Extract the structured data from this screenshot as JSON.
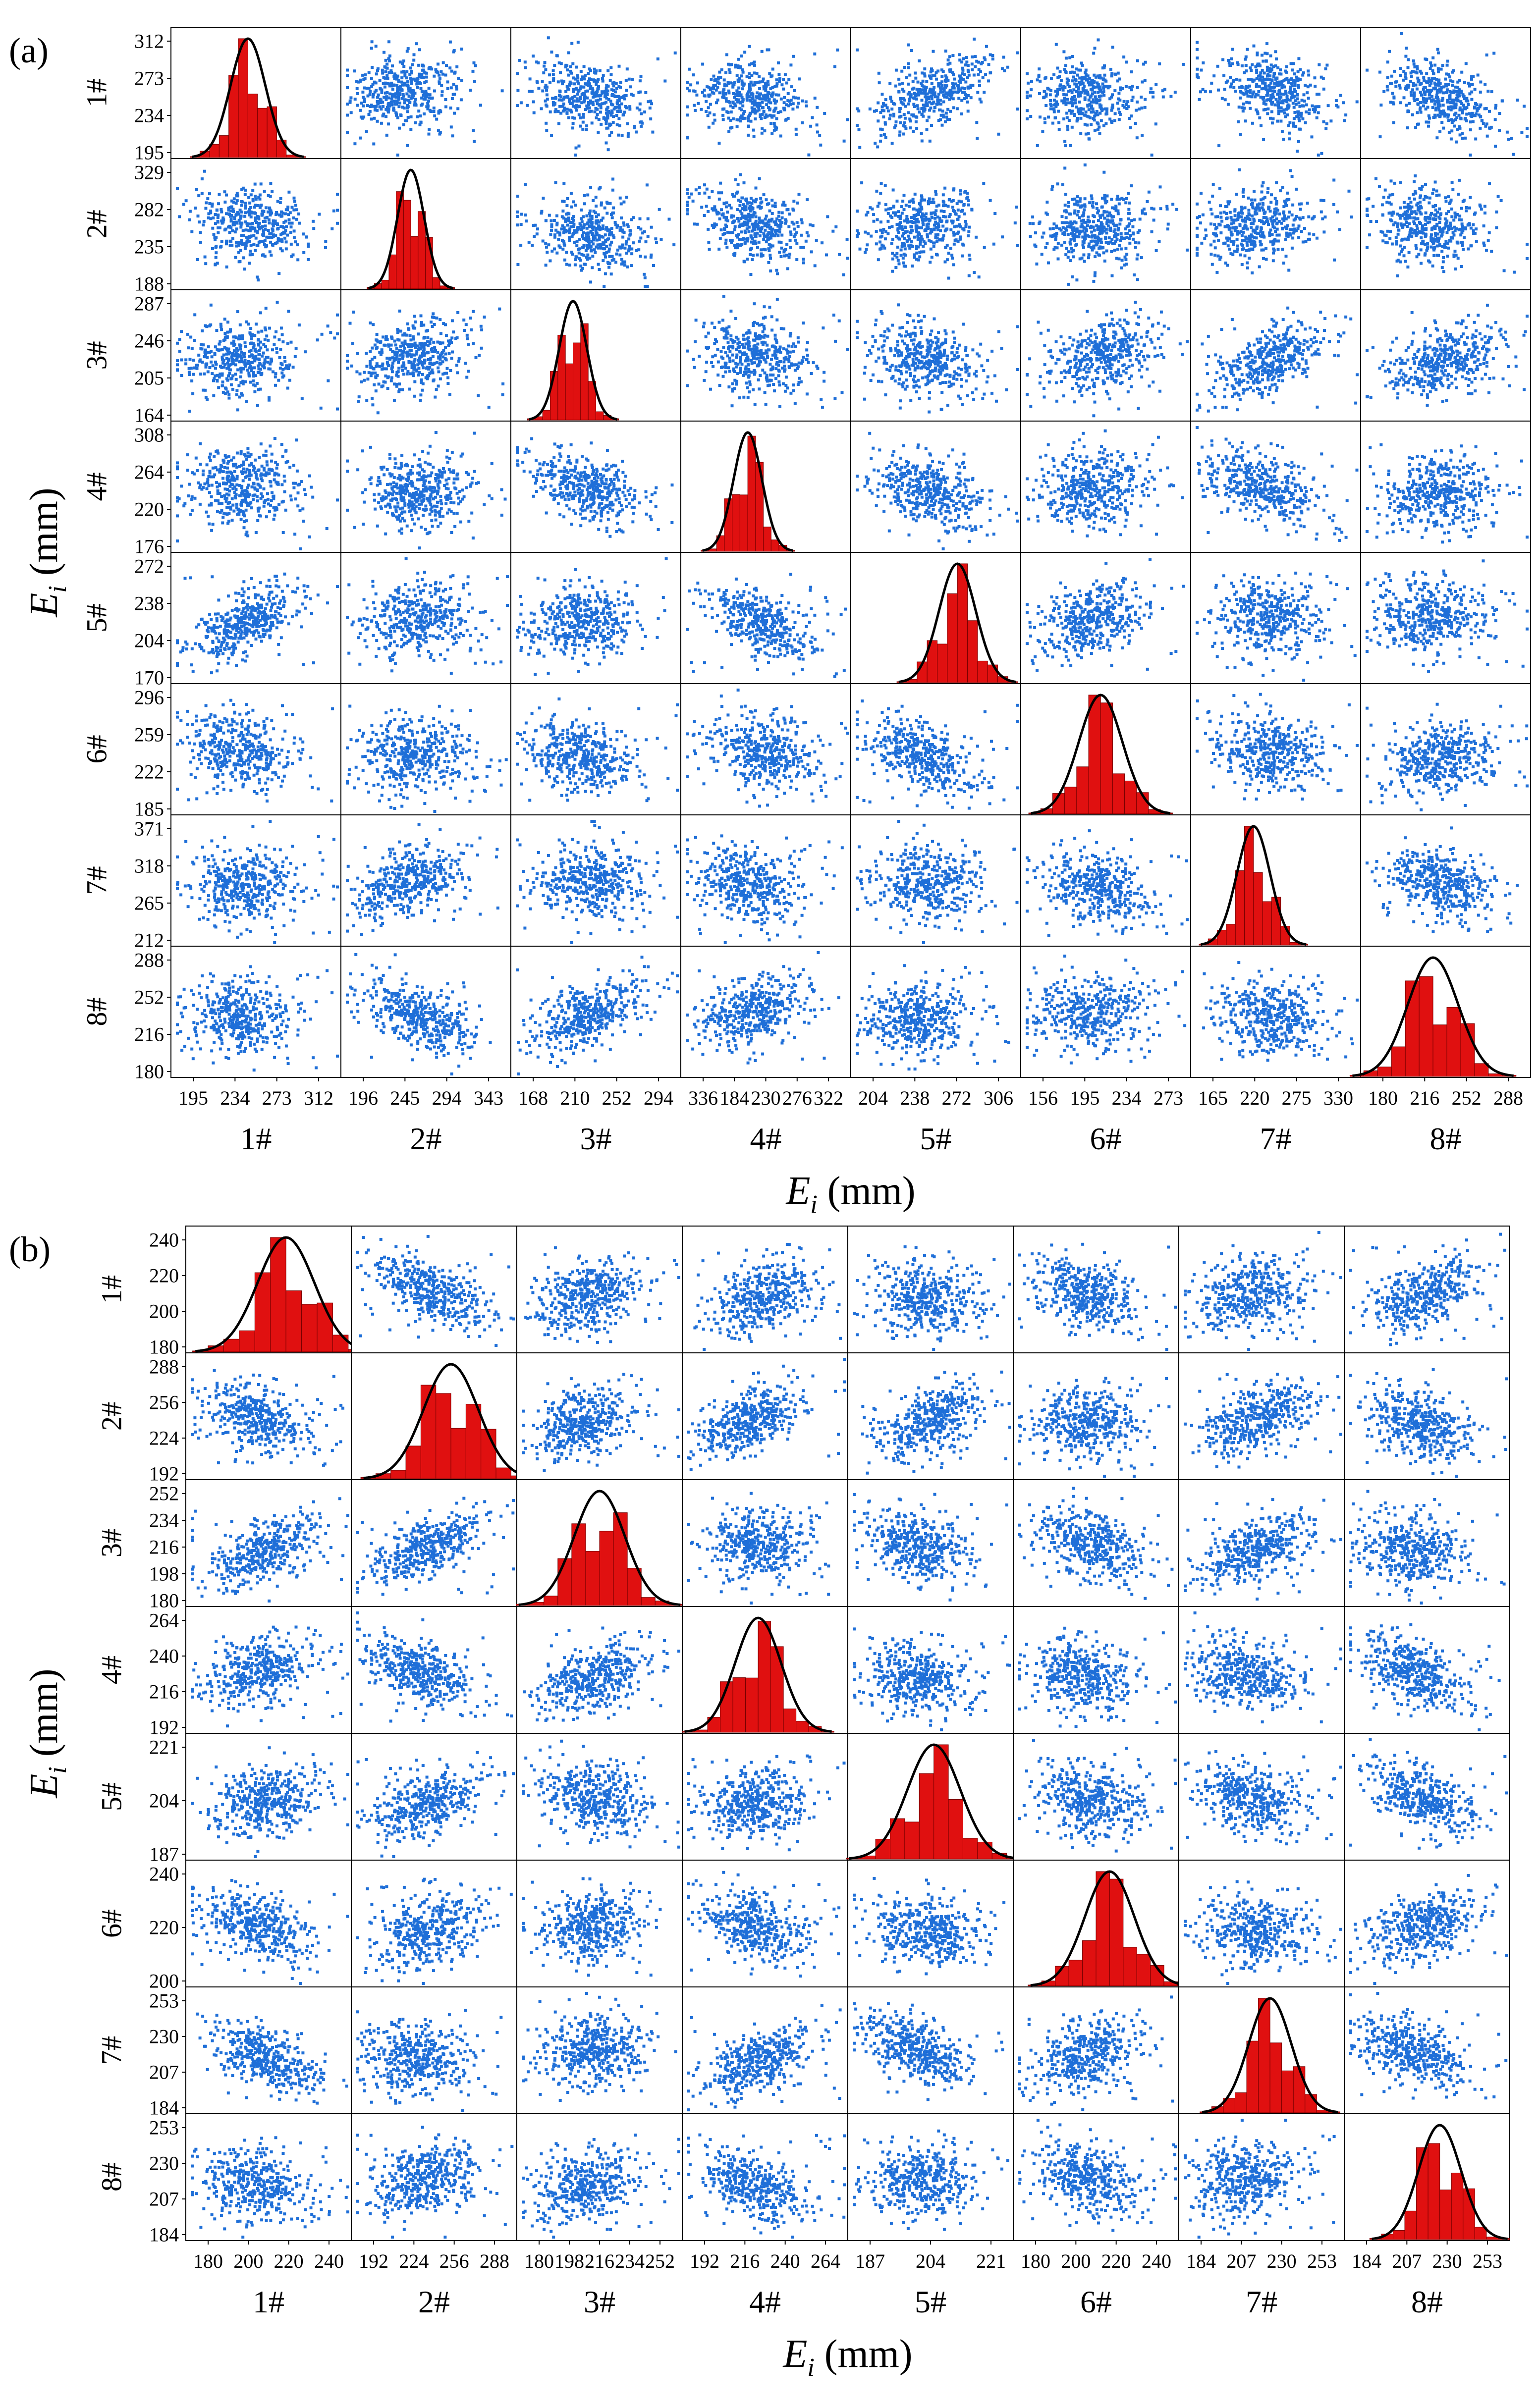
{
  "chart_data": [
    {
      "type": "scatter-matrix",
      "panel_label": "(a)",
      "variables": [
        "1#",
        "2#",
        "3#",
        "4#",
        "5#",
        "6#",
        "7#",
        "8#"
      ],
      "axis_label": "E",
      "axis_label_sub": "i",
      "axis_unit": "(mm)",
      "y_ticks": [
        [
          "312",
          "273",
          "234",
          "195"
        ],
        [
          "329",
          "282",
          "235",
          "188"
        ],
        [
          "287",
          "246",
          "205",
          "164"
        ],
        [
          "308",
          "264",
          "220",
          "176"
        ],
        [
          "272",
          "238",
          "204",
          "170"
        ],
        [
          "296",
          "259",
          "222",
          "185"
        ],
        [
          "371",
          "318",
          "265",
          "212"
        ],
        [
          "288",
          "252",
          "216",
          "180"
        ]
      ],
      "x_ticks": [
        [
          "195",
          "234",
          "273",
          "312"
        ],
        [
          "196",
          "245",
          "294",
          "343"
        ],
        [
          "168",
          "210",
          "252",
          "294"
        ],
        [
          "336",
          "184",
          "230",
          "276",
          "322"
        ],
        [
          "204",
          "238",
          "272",
          "306"
        ],
        [
          "156",
          "195",
          "234",
          "273"
        ],
        [
          "165",
          "220",
          "275",
          "330"
        ],
        [
          "180",
          "216",
          "252",
          "288"
        ]
      ],
      "diag_mean": [
        248,
        246,
        209,
        228,
        234,
        211,
        226,
        226
      ],
      "diag_sd": [
        12,
        11,
        10,
        11,
        11,
        15,
        16,
        16
      ],
      "diag_range": [
        [
          195,
          312
        ],
        [
          188,
          329
        ],
        [
          164,
          287
        ],
        [
          176,
          308
        ],
        [
          170,
          272
        ],
        [
          156,
          273
        ],
        [
          165,
          330
        ],
        [
          180,
          288
        ]
      ],
      "histogram_color": "#e01010",
      "scatter_color": "#1f6fd8",
      "curve_color": "#000000"
    },
    {
      "type": "scatter-matrix",
      "panel_label": "(b)",
      "variables": [
        "1#",
        "2#",
        "3#",
        "4#",
        "5#",
        "6#",
        "7#",
        "8#"
      ],
      "axis_label": "E",
      "axis_label_sub": "i",
      "axis_unit": "(mm)",
      "y_ticks": [
        [
          "240",
          "220",
          "200",
          "180"
        ],
        [
          "288",
          "256",
          "224",
          "192"
        ],
        [
          "252",
          "234",
          "216",
          "198",
          "180"
        ],
        [
          "264",
          "240",
          "216",
          "192"
        ],
        [
          "221",
          "204",
          "187"
        ],
        [
          "240",
          "220",
          "200"
        ],
        [
          "253",
          "230",
          "207",
          "184"
        ],
        [
          "253",
          "230",
          "207",
          "184"
        ]
      ],
      "x_ticks": [
        [
          "180",
          "200",
          "220",
          "240"
        ],
        [
          "192",
          "224",
          "256",
          "288"
        ],
        [
          "180",
          "198",
          "216",
          "234",
          "252"
        ],
        [
          "192",
          "216",
          "240",
          "264"
        ],
        [
          "187",
          "204",
          "221"
        ],
        [
          "180",
          "200",
          "220",
          "240"
        ],
        [
          "184",
          "207",
          "230",
          "253"
        ],
        [
          "184",
          "207",
          "230",
          "253"
        ]
      ],
      "diag_mean": [
        218,
        254,
        216,
        225,
        207,
        219,
        227,
        229
      ],
      "diag_sd": [
        13,
        17,
        11,
        10,
        8,
        10,
        10,
        10
      ],
      "diag_range": [
        [
          172,
          248
        ],
        [
          192,
          295
        ],
        [
          180,
          252
        ],
        [
          192,
          264
        ],
        [
          181,
          231
        ],
        [
          180,
          247
        ],
        [
          184,
          262
        ],
        [
          184,
          262
        ]
      ],
      "histogram_color": "#e01010",
      "scatter_color": "#1f6fd8",
      "curve_color": "#000000"
    }
  ]
}
